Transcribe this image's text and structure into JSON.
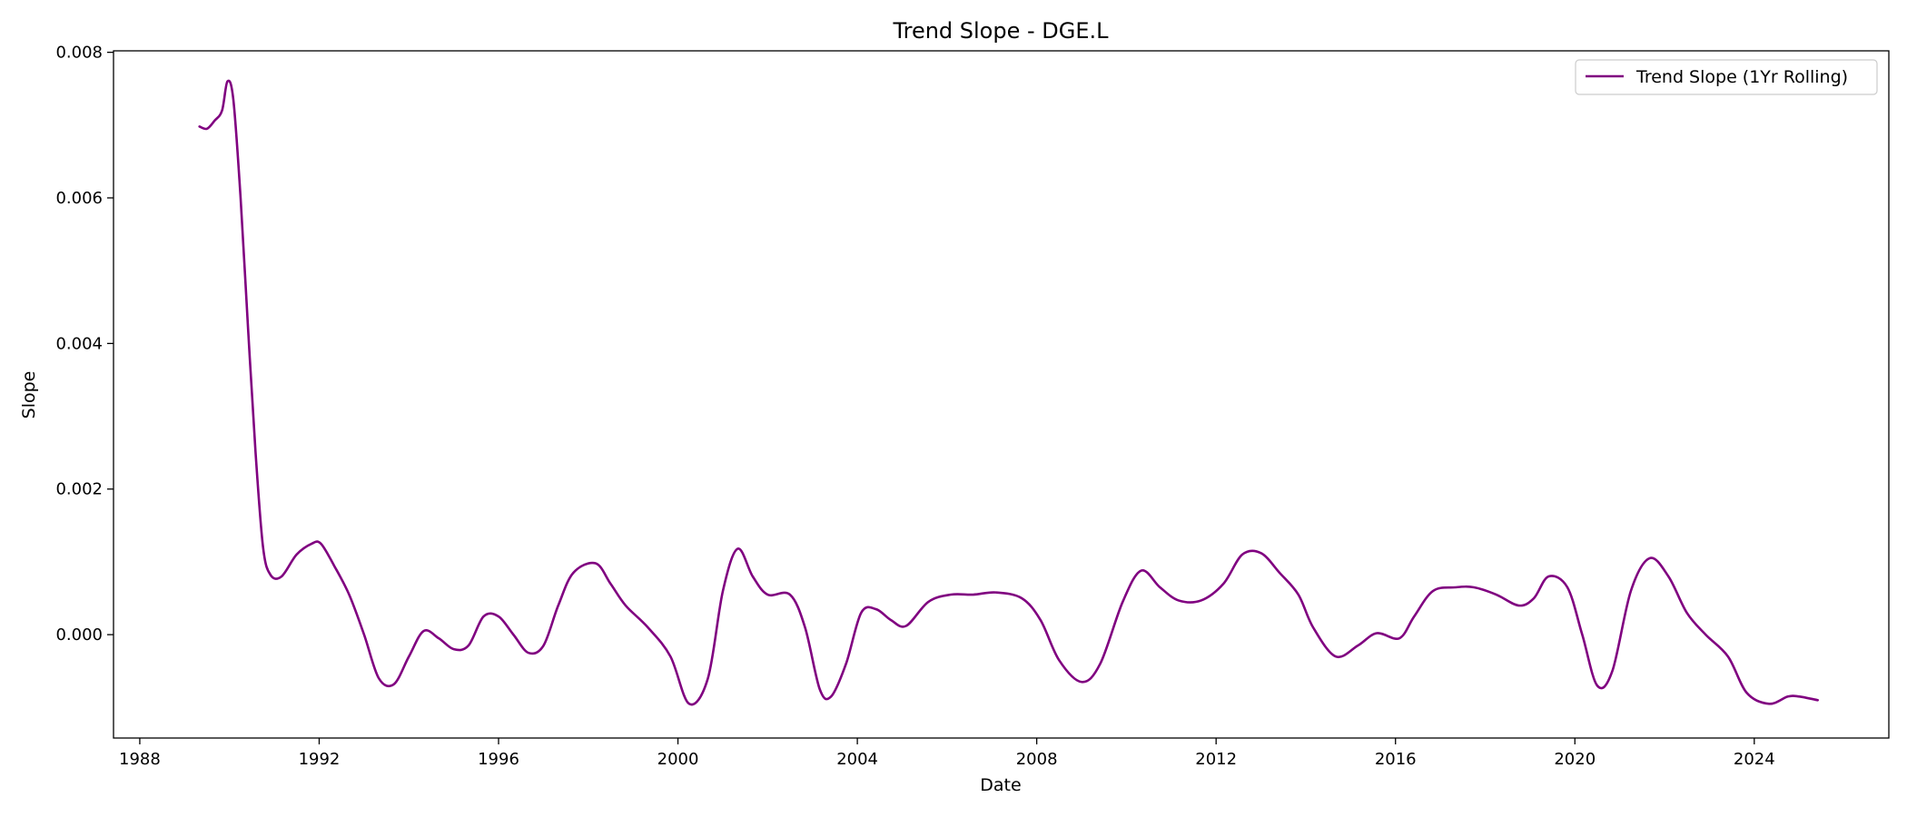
{
  "chart_data": {
    "type": "line",
    "title": "Trend Slope - DGE.L",
    "xlabel": "Date",
    "ylabel": "Slope",
    "xlim": [
      "1987-06-01",
      "2027-01-01"
    ],
    "ylim": [
      -0.00142,
      0.00802
    ],
    "x_ticks": [
      "1988",
      "1992",
      "1996",
      "2000",
      "2004",
      "2008",
      "2012",
      "2016",
      "2020",
      "2024"
    ],
    "y_ticks": [
      "0.000",
      "0.002",
      "0.004",
      "0.006",
      "0.008"
    ],
    "grid": false,
    "legend": {
      "placement": "top-right",
      "entries": [
        "Trend Slope (1Yr Rolling)"
      ]
    },
    "series": [
      {
        "name": "Trend Slope (1Yr Rolling)",
        "color": "#800080",
        "points": [
          [
            "1989-05-01",
            0.00698
          ],
          [
            "1989-07-01",
            0.00695
          ],
          [
            "1989-09-01",
            0.00706
          ],
          [
            "1989-11-01",
            0.0072
          ],
          [
            "1989-12-15",
            0.0076
          ],
          [
            "1990-02-01",
            0.00735
          ],
          [
            "1990-04-01",
            0.006
          ],
          [
            "1990-06-01",
            0.0042
          ],
          [
            "1990-08-01",
            0.0025
          ],
          [
            "1990-10-01",
            0.0012
          ],
          [
            "1990-12-01",
            0.00082
          ],
          [
            "1991-03-01",
            0.0008
          ],
          [
            "1991-07-01",
            0.0011
          ],
          [
            "1991-11-01",
            0.00125
          ],
          [
            "1992-01-15",
            0.00125
          ],
          [
            "1992-05-01",
            0.00095
          ],
          [
            "1992-09-01",
            0.00055
          ],
          [
            "1993-01-01",
            0.0
          ],
          [
            "1993-05-01",
            -0.0006
          ],
          [
            "1993-09-01",
            -0.00068
          ],
          [
            "1994-01-01",
            -0.0003
          ],
          [
            "1994-05-01",
            5e-05
          ],
          [
            "1994-09-01",
            -5e-05
          ],
          [
            "1995-01-01",
            -0.0002
          ],
          [
            "1995-05-01",
            -0.00015
          ],
          [
            "1995-09-01",
            0.00025
          ],
          [
            "1996-01-01",
            0.00025
          ],
          [
            "1996-05-01",
            0.0
          ],
          [
            "1996-09-01",
            -0.00025
          ],
          [
            "1997-01-01",
            -0.00015
          ],
          [
            "1997-05-01",
            0.0004
          ],
          [
            "1997-09-01",
            0.00085
          ],
          [
            "1998-03-01",
            0.00098
          ],
          [
            "1998-07-01",
            0.0007
          ],
          [
            "1998-11-01",
            0.0004
          ],
          [
            "1999-05-01",
            0.0001
          ],
          [
            "1999-11-01",
            -0.0003
          ],
          [
            "2000-04-01",
            -0.00095
          ],
          [
            "2000-09-01",
            -0.0006
          ],
          [
            "2001-01-01",
            0.0006
          ],
          [
            "2001-05-01",
            0.00118
          ],
          [
            "2001-09-01",
            0.0008
          ],
          [
            "2002-01-01",
            0.00055
          ],
          [
            "2002-07-01",
            0.00055
          ],
          [
            "2002-11-01",
            0.0001
          ],
          [
            "2003-03-01",
            -0.00075
          ],
          [
            "2003-06-01",
            -0.00085
          ],
          [
            "2003-10-01",
            -0.0004
          ],
          [
            "2004-02-01",
            0.0003
          ],
          [
            "2004-06-01",
            0.00035
          ],
          [
            "2004-10-01",
            0.0002
          ],
          [
            "2005-02-01",
            0.00012
          ],
          [
            "2005-08-01",
            0.00045
          ],
          [
            "2006-02-01",
            0.00055
          ],
          [
            "2006-08-01",
            0.00055
          ],
          [
            "2007-02-01",
            0.00058
          ],
          [
            "2007-09-01",
            0.0005
          ],
          [
            "2008-02-01",
            0.0002
          ],
          [
            "2008-07-01",
            -0.00035
          ],
          [
            "2009-01-01",
            -0.00065
          ],
          [
            "2009-06-01",
            -0.0004
          ],
          [
            "2009-12-01",
            0.00045
          ],
          [
            "2010-05-01",
            0.00088
          ],
          [
            "2010-10-01",
            0.00065
          ],
          [
            "2011-03-01",
            0.00047
          ],
          [
            "2011-09-01",
            0.00047
          ],
          [
            "2012-03-01",
            0.0007
          ],
          [
            "2012-08-01",
            0.0011
          ],
          [
            "2013-01-01",
            0.00112
          ],
          [
            "2013-06-01",
            0.00085
          ],
          [
            "2013-11-01",
            0.00055
          ],
          [
            "2014-03-01",
            0.0001
          ],
          [
            "2014-09-01",
            -0.0003
          ],
          [
            "2015-03-01",
            -0.00015
          ],
          [
            "2015-08-01",
            2e-05
          ],
          [
            "2016-02-01",
            -5e-05
          ],
          [
            "2016-06-01",
            0.00025
          ],
          [
            "2016-11-01",
            0.0006
          ],
          [
            "2017-05-01",
            0.00065
          ],
          [
            "2017-10-01",
            0.00065
          ],
          [
            "2018-04-01",
            0.00055
          ],
          [
            "2018-10-01",
            0.0004
          ],
          [
            "2019-02-01",
            0.0005
          ],
          [
            "2019-06-01",
            0.0008
          ],
          [
            "2019-11-01",
            0.00065
          ],
          [
            "2020-03-01",
            0.0
          ],
          [
            "2020-07-01",
            -0.0007
          ],
          [
            "2020-11-01",
            -0.0005
          ],
          [
            "2021-04-01",
            0.0006
          ],
          [
            "2021-09-01",
            0.00105
          ],
          [
            "2022-02-01",
            0.0008
          ],
          [
            "2022-07-01",
            0.0003
          ],
          [
            "2022-12-01",
            0.0
          ],
          [
            "2023-06-01",
            -0.0003
          ],
          [
            "2023-11-01",
            -0.0008
          ],
          [
            "2024-05-01",
            -0.00095
          ],
          [
            "2024-10-01",
            -0.00085
          ],
          [
            "2025-01-01",
            -0.00085
          ],
          [
            "2025-06-01",
            -0.0009
          ]
        ]
      }
    ]
  }
}
